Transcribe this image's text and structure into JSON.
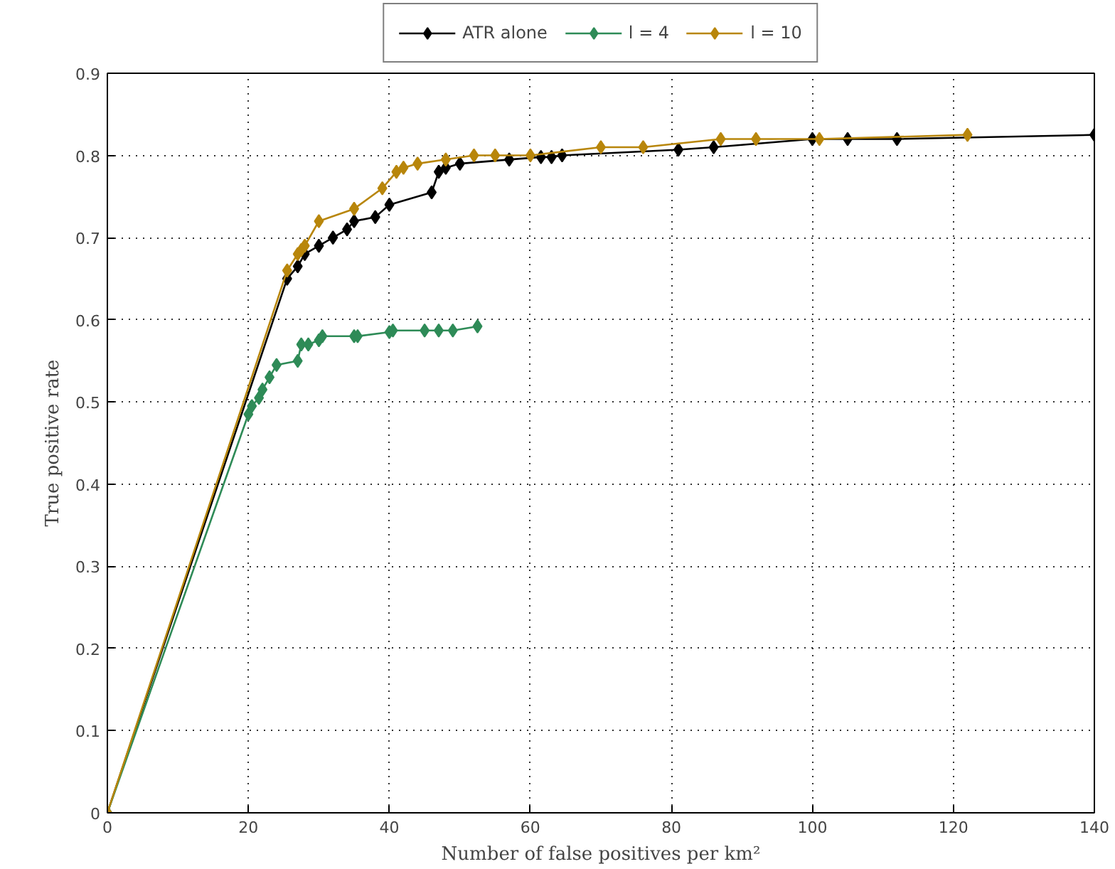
{
  "chart_data": {
    "type": "line",
    "xlabel": "Number of false positives per km²",
    "ylabel": "True positive rate",
    "xlim": [
      0,
      140
    ],
    "ylim": [
      0,
      0.9
    ],
    "xticks": [
      0,
      20,
      40,
      60,
      80,
      100,
      120,
      140
    ],
    "yticks": [
      0,
      0.1,
      0.2,
      0.3,
      0.4,
      0.5,
      0.6,
      0.7,
      0.8,
      0.9
    ],
    "grid": true,
    "legend": "top",
    "marker": "diamond",
    "line_style": "solid",
    "series": [
      {
        "name": "ATR alone",
        "color": "#000000",
        "x": [
          0,
          25.5,
          27,
          28,
          30,
          32,
          34,
          35,
          38,
          40,
          46,
          47,
          48,
          50,
          57,
          61.5,
          63,
          64.5,
          81,
          86,
          100,
          105,
          112,
          140
        ],
        "values": [
          0,
          0.65,
          0.665,
          0.68,
          0.69,
          0.7,
          0.71,
          0.72,
          0.725,
          0.74,
          0.755,
          0.78,
          0.785,
          0.79,
          0.795,
          0.798,
          0.798,
          0.8,
          0.807,
          0.81,
          0.82,
          0.82,
          0.82,
          0.825
        ]
      },
      {
        "name": "l = 4",
        "color": "#2e8b57",
        "x": [
          0,
          20,
          20.5,
          21.5,
          22,
          23,
          24,
          27,
          27.5,
          28.5,
          30,
          30.5,
          35,
          35.5,
          40,
          40.5,
          45,
          47,
          49,
          52.5
        ],
        "values": [
          0,
          0.485,
          0.495,
          0.505,
          0.515,
          0.53,
          0.545,
          0.55,
          0.57,
          0.57,
          0.575,
          0.58,
          0.58,
          0.58,
          0.585,
          0.587,
          0.587,
          0.587,
          0.587,
          0.592
        ]
      },
      {
        "name": "l = 10",
        "color": "#b8860b",
        "x": [
          0,
          25.5,
          27,
          27.5,
          28,
          30,
          35,
          39,
          41,
          42,
          44,
          48,
          52,
          55,
          60,
          70,
          76,
          87,
          92,
          101,
          122
        ],
        "values": [
          0,
          0.66,
          0.68,
          0.685,
          0.69,
          0.72,
          0.735,
          0.76,
          0.78,
          0.785,
          0.79,
          0.795,
          0.8,
          0.8,
          0.8,
          0.81,
          0.81,
          0.82,
          0.82,
          0.82,
          0.825
        ]
      }
    ]
  }
}
